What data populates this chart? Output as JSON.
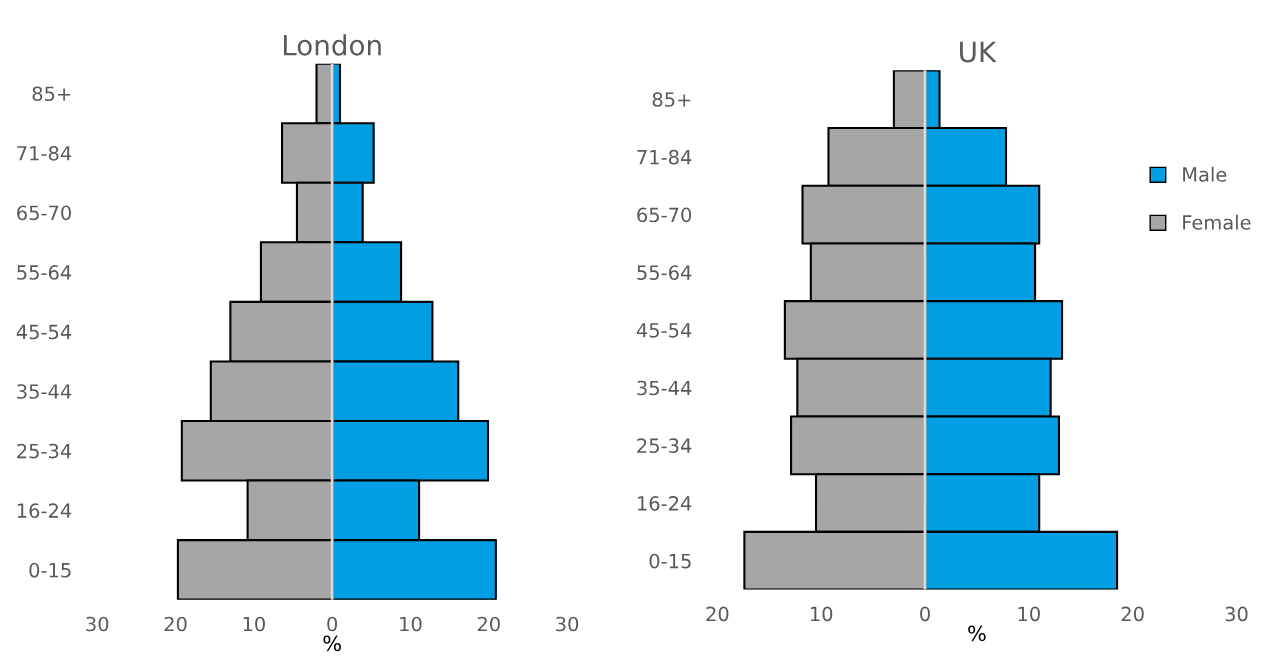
{
  "chart_data": [
    {
      "type": "bar",
      "orientation": "horizontal",
      "stacked": true,
      "title": "London",
      "xlabel": "%",
      "categories": [
        "85+",
        "71-84",
        "65-70",
        "55-64",
        "45-54",
        "35-44",
        "25-34",
        "16-24",
        "0-15"
      ],
      "series": [
        {
          "color": "#009fe3",
          "values": [
            1.0,
            5.3,
            3.9,
            8.8,
            12.8,
            16.1,
            19.9,
            11.1,
            20.9
          ]
        },
        {
          "color": "#a6a6a6",
          "values": [
            -2.0,
            -6.4,
            -4.5,
            -9.1,
            -13.0,
            -15.5,
            -19.2,
            -10.8,
            -19.7
          ]
        }
      ],
      "xlim": [
        -30,
        30
      ],
      "xticks": [
        {
          "value": -30,
          "label": "30"
        },
        {
          "value": -20,
          "label": "20"
        },
        {
          "value": -10,
          "label": "10"
        },
        0,
        10,
        20,
        30
      ],
      "ref_lines": [
        {
          "axis": "x",
          "value": 0,
          "color": "#d9d9d9"
        }
      ],
      "grid": false,
      "legend": false
    },
    {
      "type": "bar",
      "orientation": "horizontal",
      "stacked": true,
      "title": "UK",
      "xlabel": "%",
      "categories": [
        "85+",
        "71-84",
        "65-70",
        "55-64",
        "45-54",
        "35-44",
        "25-34",
        "16-24",
        "0-15"
      ],
      "series": [
        {
          "name": "Male",
          "color": "#009fe3",
          "values": [
            1.4,
            7.8,
            11.0,
            10.6,
            13.2,
            12.1,
            12.9,
            11.0,
            18.5
          ]
        },
        {
          "name": "Female",
          "color": "#a6a6a6",
          "values": [
            -3.0,
            -9.3,
            -11.8,
            -11.0,
            -13.5,
            -12.3,
            -12.9,
            -10.5,
            -17.4
          ]
        }
      ],
      "xlim": [
        -20,
        30
      ],
      "xticks": [
        {
          "value": -20,
          "label": "20"
        },
        {
          "value": -10,
          "label": "10"
        },
        0,
        10,
        20,
        30
      ],
      "ref_lines": [
        {
          "axis": "x",
          "value": 0,
          "color": "#d9d9d9"
        }
      ],
      "grid": false,
      "legend": "right"
    }
  ]
}
